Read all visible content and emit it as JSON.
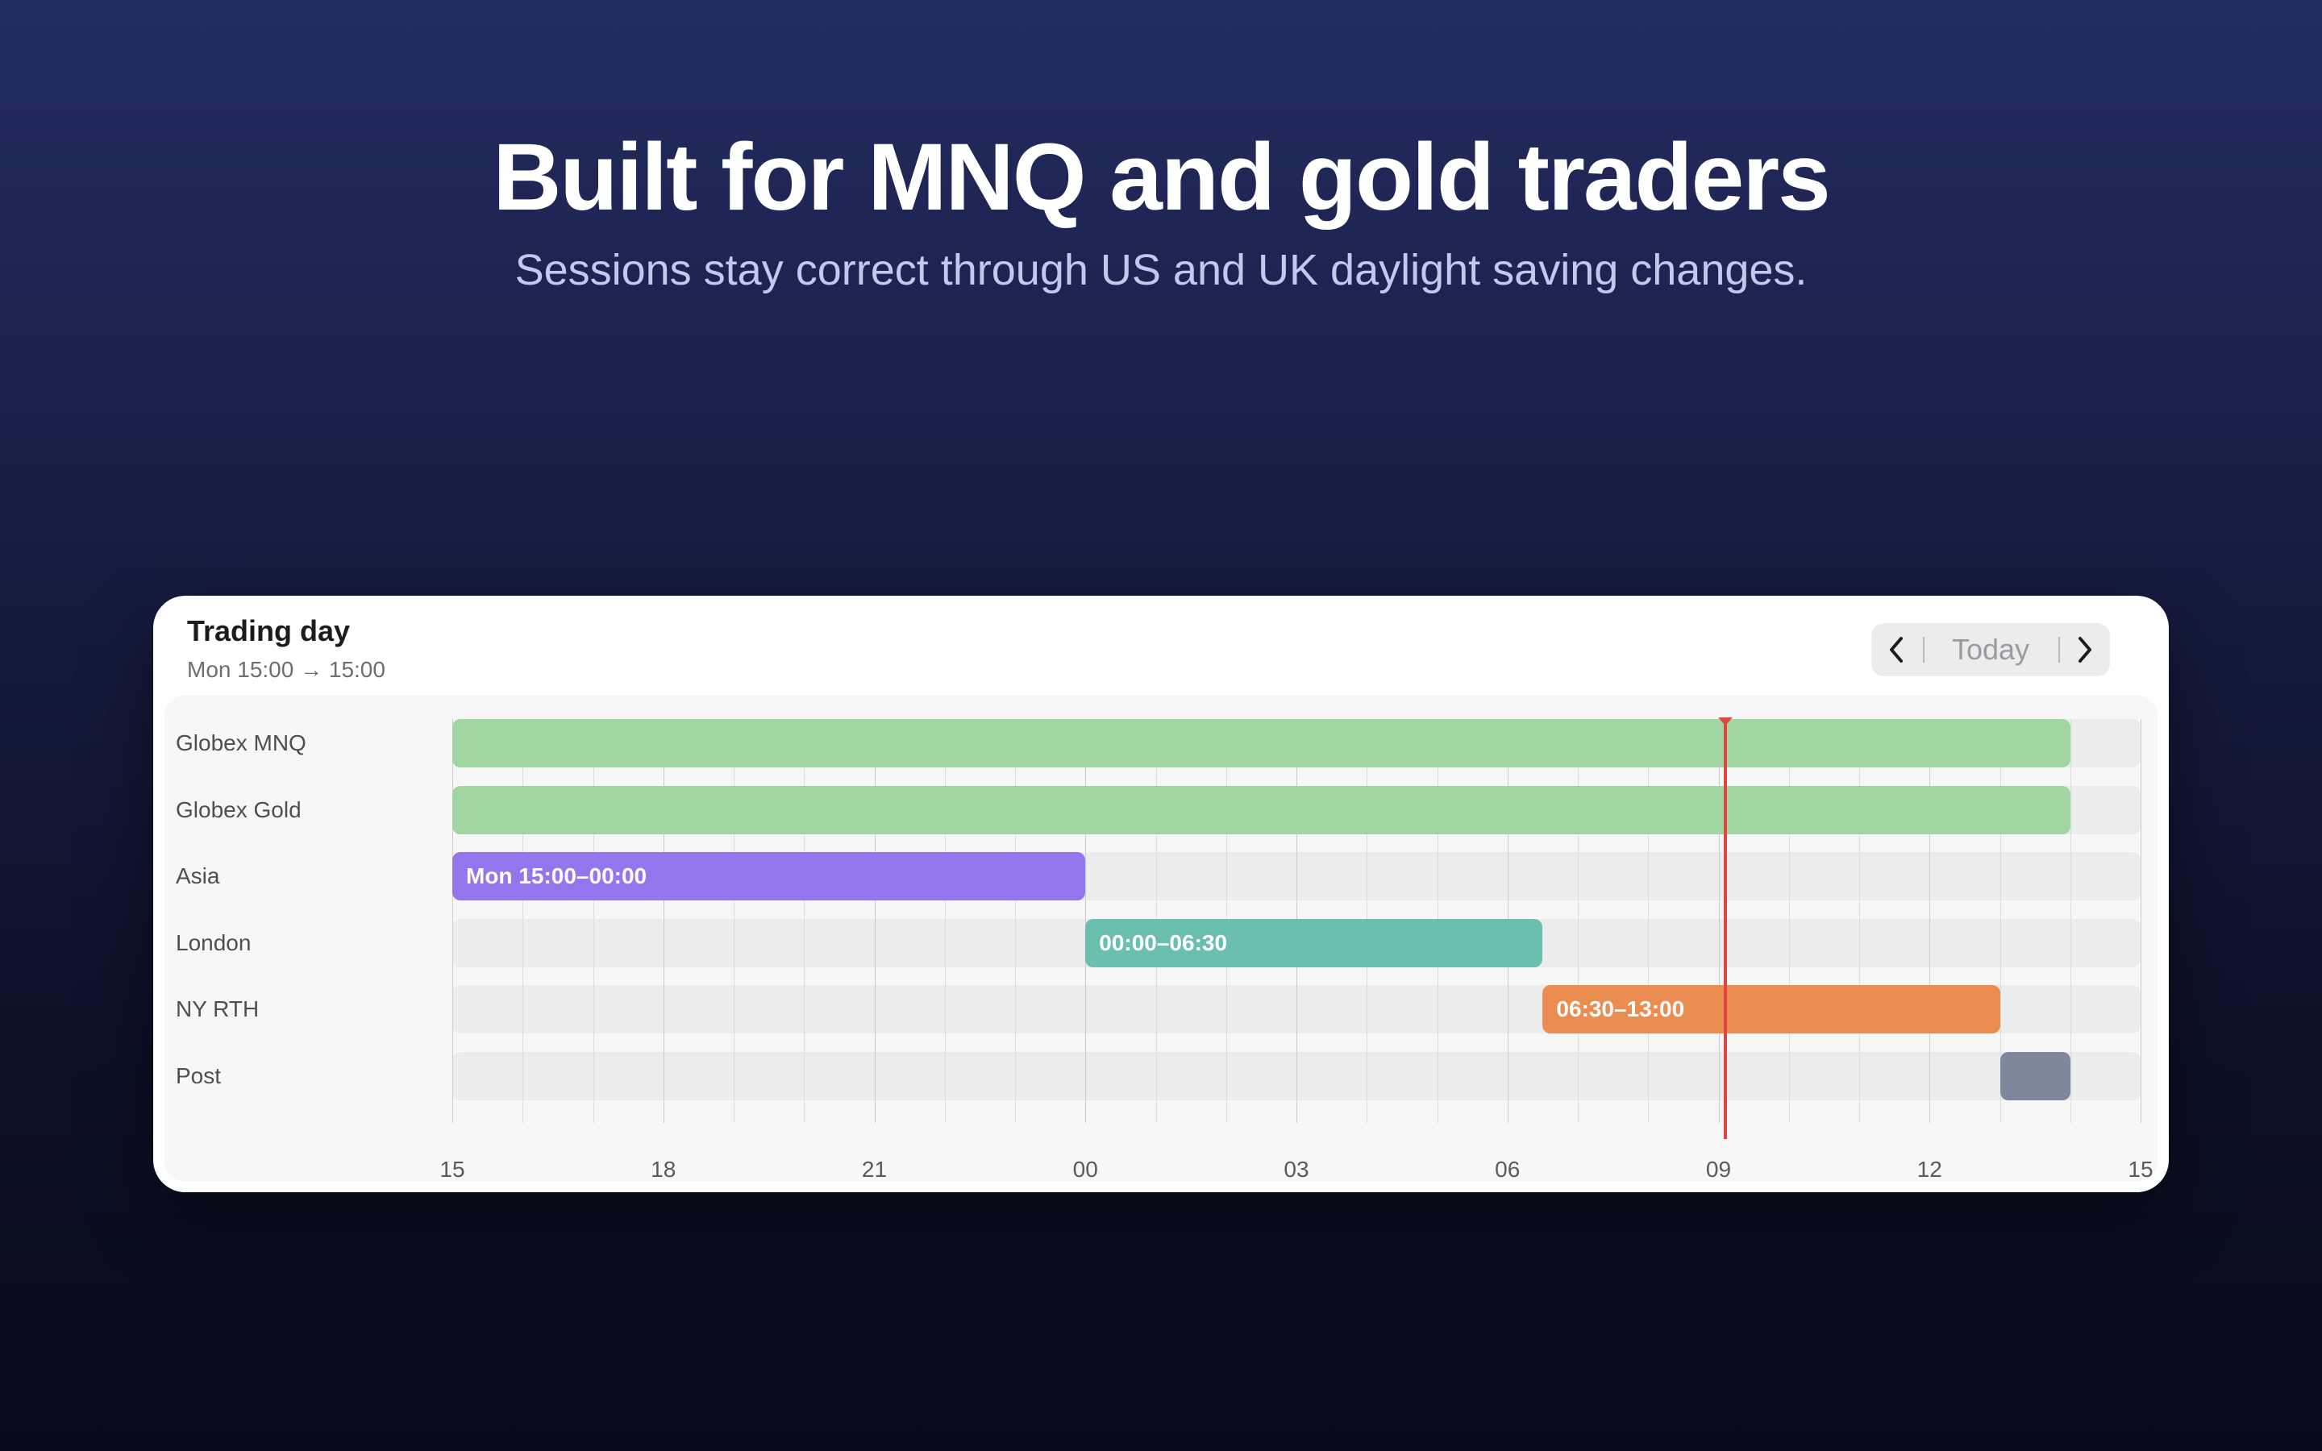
{
  "hero": {
    "title": "Built for MNQ and gold traders",
    "subtitle": "Sessions stay correct through US and UK daylight saving changes."
  },
  "card": {
    "title": "Trading day",
    "subtitle": "Mon 15:00 → 15:00",
    "nav": {
      "prev_icon": "chevron-left-icon",
      "today_label": "Today",
      "next_icon": "chevron-right-icon"
    }
  },
  "chart_data": {
    "type": "gantt",
    "x_unit": "hours since Mon 15:00",
    "x_range": [
      0,
      24
    ],
    "tick_labels": [
      "15",
      "18",
      "21",
      "00",
      "03",
      "06",
      "09",
      "12",
      "15"
    ],
    "now_marker_hours": 18.1,
    "now_color": "#e0463c",
    "rows": [
      {
        "label": "Globex MNQ",
        "start": 0,
        "end": 23,
        "color": "#a1d6a2",
        "bar_label": ""
      },
      {
        "label": "Globex Gold",
        "start": 0,
        "end": 23,
        "color": "#a1d6a2",
        "bar_label": ""
      },
      {
        "label": "Asia",
        "start": 0,
        "end": 9,
        "color": "#9375ec",
        "bar_label": "Mon 15:00–00:00"
      },
      {
        "label": "London",
        "start": 9,
        "end": 15.5,
        "color": "#6bbfae",
        "bar_label": "00:00–06:30"
      },
      {
        "label": "NY RTH",
        "start": 15.5,
        "end": 22,
        "color": "#eb8c51",
        "bar_label": "06:30–13:00"
      },
      {
        "label": "Post",
        "start": 22,
        "end": 23,
        "color": "#7d889c",
        "bar_label": ""
      }
    ]
  }
}
